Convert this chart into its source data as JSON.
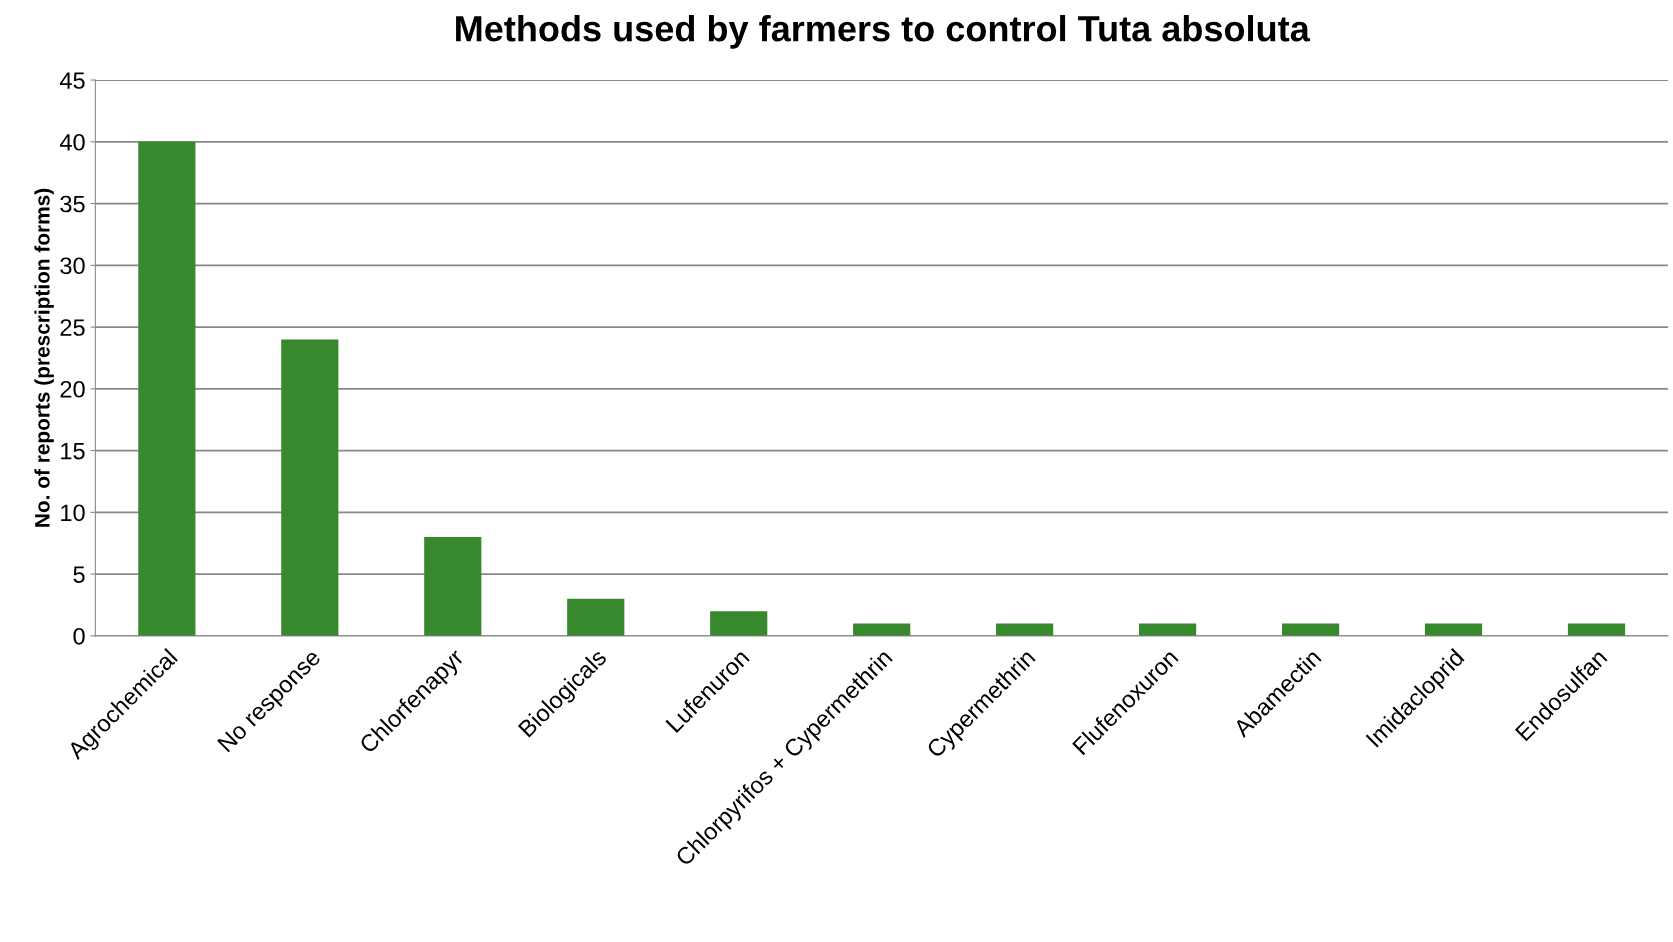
{
  "chart_data": {
    "type": "bar",
    "title": "Methods used by farmers to control Tuta absoluta",
    "ylabel": "No. of reports (prescription forms)",
    "categories": [
      "Agrochemical",
      "No response",
      "Chlorfenapyr",
      "Biologicals",
      "Lufenuron",
      "Chlorpyrifos + Cypermethrin",
      "Cypermethrin",
      "Flufenoxuron",
      "Abamectin",
      "Imidacloprid",
      "Endosulfan"
    ],
    "values": [
      40,
      24,
      8,
      3,
      2,
      1,
      1,
      1,
      1,
      1,
      1
    ],
    "color": "#38882e",
    "ylim": [
      0,
      45
    ],
    "yticks": [
      0,
      5,
      10,
      15,
      20,
      25,
      30,
      35,
      40,
      45
    ],
    "grid": "y",
    "legend": false
  }
}
